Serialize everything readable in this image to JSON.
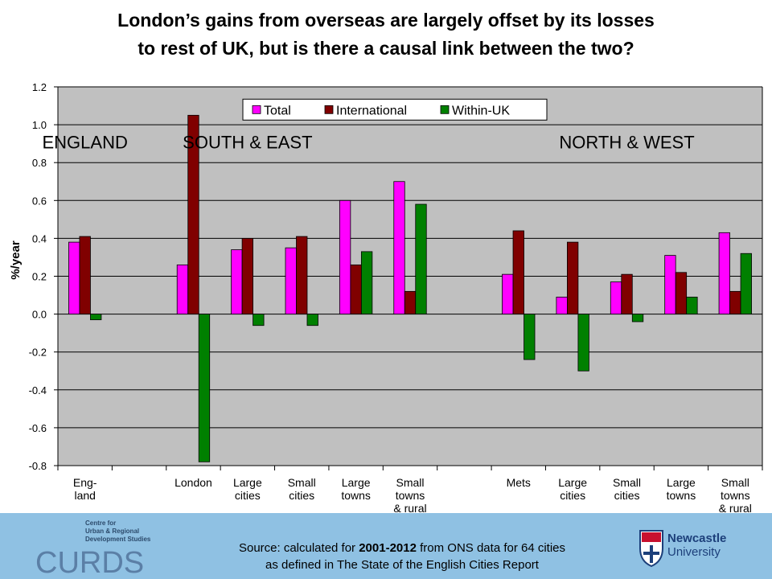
{
  "title": {
    "line1": "London’s gains from overseas are largely offset by its losses",
    "line2": "to rest of UK, but is there a causal link between the two?"
  },
  "chart_data": {
    "type": "bar",
    "ylabel": "%/year",
    "ylim": [
      -0.8,
      1.2
    ],
    "yticks": [
      "1.2",
      "1.0",
      "0.8",
      "0.6",
      "0.4",
      "0.2",
      "0.0",
      "-0.2",
      "-0.4",
      "-0.6",
      "-0.8"
    ],
    "ytick_values": [
      1.2,
      1.0,
      0.8,
      0.6,
      0.4,
      0.2,
      0.0,
      -0.2,
      -0.4,
      -0.6,
      -0.8
    ],
    "grid": "horizontal",
    "legend_position": "top-center",
    "categories": [
      [
        "Eng-",
        "land"
      ],
      [],
      [
        "London"
      ],
      [
        "Large",
        "cities"
      ],
      [
        "Small",
        "cities"
      ],
      [
        "Large",
        "towns"
      ],
      [
        "Small",
        "towns",
        "& rural"
      ],
      [],
      [
        "Mets"
      ],
      [
        "Large",
        "cities"
      ],
      [
        "Small",
        "cities"
      ],
      [
        "Large",
        "towns"
      ],
      [
        "Small",
        "towns",
        "& rural"
      ]
    ],
    "series": [
      {
        "name": "Total",
        "color": "#ff00ff",
        "values": [
          0.38,
          null,
          0.26,
          0.34,
          0.35,
          0.6,
          0.7,
          null,
          0.21,
          0.09,
          0.17,
          0.31,
          0.43
        ]
      },
      {
        "name": "International",
        "color": "#800000",
        "values": [
          0.41,
          null,
          1.05,
          0.4,
          0.41,
          0.26,
          0.12,
          null,
          0.44,
          0.38,
          0.21,
          0.22,
          0.12
        ]
      },
      {
        "name": "Within-UK",
        "color": "#008000",
        "values": [
          -0.03,
          null,
          -0.78,
          -0.06,
          -0.06,
          0.33,
          0.58,
          null,
          -0.24,
          -0.3,
          -0.04,
          0.09,
          0.32
        ]
      }
    ],
    "group_labels": [
      {
        "text": "ENGLAND",
        "category_index": 0
      },
      {
        "text": "SOUTH & EAST",
        "category_index": 3
      },
      {
        "text": "NORTH & WEST",
        "category_index": 10
      }
    ],
    "plot_background": "#c0c0c0",
    "chart_background": "#ffffff"
  },
  "source": {
    "line1_pre": "Source: calculated for ",
    "line1_bold": "2001-2012",
    "line1_post": " from ONS data for 64 cities",
    "line2": "as defined in The State of the English Cities Report"
  },
  "logos": {
    "curds_small": [
      "Centre for",
      "Urban & Regional",
      "Development Studies"
    ],
    "curds_large": "CURDS",
    "newcastle_line1": "Newcastle",
    "newcastle_line2": "University"
  }
}
